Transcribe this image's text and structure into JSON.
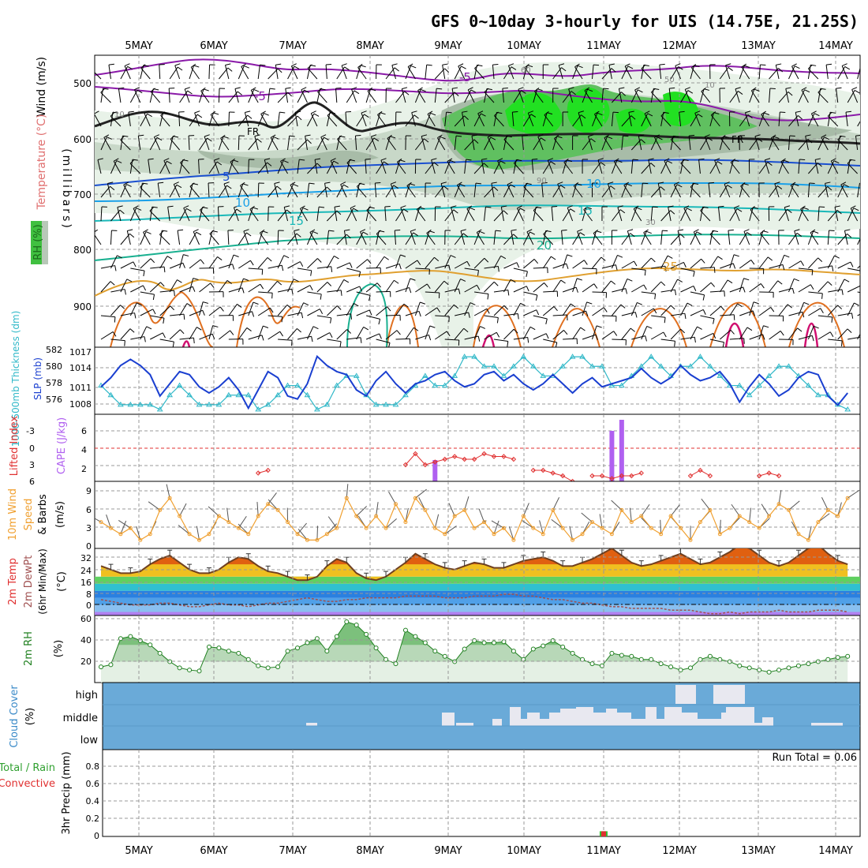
{
  "title": "GFS 0~10day 3-hourly for UIS (14.75E, 21.25S)",
  "dates": [
    "5MAY",
    "6MAY",
    "7MAY",
    "8MAY",
    "9MAY",
    "10MAY",
    "11MAY",
    "12MAY",
    "13MAY",
    "14MAY"
  ],
  "colors": {
    "temp_neg": "#8a1aa8",
    "temp_5": "#1a4fd0",
    "temp_10": "#1aa0e8",
    "temp_15": "#1ab8b8",
    "temp_20": "#19b090",
    "temp_25": "#e0a030",
    "temp_30": "#e07020",
    "temp_hot": "#d01070",
    "slp": "#1a3fd0",
    "thickness": "#30b8c8",
    "lifted": "#e03030",
    "cape": "#b060f0",
    "wind": "#f0a030",
    "rh_green": "#40c040",
    "cloud_bg": "#6aaad8",
    "cloud_fill": "#e8e8f0",
    "precip_total": "#30c030",
    "precip_conv": "#e03030"
  },
  "panels": {
    "upper": {
      "ylabel_wind": "Wind (m/s)",
      "ylabel_temp": "Temperature (°C)",
      "ylabel_rh": "RH (%)",
      "ylabel_units": "(millibars)",
      "ticks": [
        "500",
        "600",
        "700",
        "800",
        "900"
      ],
      "contour_labels": [
        "-5",
        "-5",
        "5",
        "10",
        "10",
        "15",
        "15",
        "20",
        "25",
        "FR",
        "FR",
        "10",
        "30",
        "50",
        "90",
        "60",
        "10"
      ]
    },
    "slp": {
      "left_label": "1000-500mb Thickness (dm)",
      "right_label": "SLP (mb)",
      "left_ticks": [
        "582",
        "580",
        "578",
        "576"
      ],
      "right_ticks": [
        "1017",
        "1014",
        "1011",
        "1008"
      ]
    },
    "cape": {
      "left_label": "Lifted Index",
      "right_label": "CAPE (J/kg)",
      "left_ticks": [
        "-3",
        "0",
        "3",
        "6"
      ],
      "right_ticks": [
        "6",
        "4",
        "2"
      ]
    },
    "wind": {
      "label1": "10m Wind",
      "label2": "Speed",
      "label3": "& Barbs",
      "units": "(m/s)",
      "ticks": [
        "9",
        "6",
        "3",
        "0"
      ]
    },
    "temp": {
      "label1": "2m Temp",
      "label2": "2m DewPt",
      "label3": "(6hr Min/Max)",
      "units": "(°C)",
      "ticks": [
        "32",
        "24",
        "16",
        "8",
        "0"
      ]
    },
    "rh": {
      "label": "2m RH",
      "units": "(%)",
      "ticks": [
        "60",
        "40",
        "20"
      ]
    },
    "cloud": {
      "label": "Cloud Cover",
      "units": "(%)",
      "levels": [
        "high",
        "middle",
        "low"
      ]
    },
    "precip": {
      "label1": "Total / Rain",
      "label2": "Convective",
      "ylabel": "3hr Precip (mm)",
      "ticks": [
        "0.8",
        "0.6",
        "0.4",
        "0.2",
        "0"
      ],
      "run_total": "Run Total = 0.06"
    }
  },
  "chart_data": {
    "type": "line",
    "title": "GFS 0~10day 3-hourly for UIS (14.75E, 21.25S)",
    "x_unit": "3-hourly steps from 4 May 12Z",
    "slp_mb": [
      1011.5,
      1013,
      1015,
      1016,
      1015,
      1013.5,
      1010,
      1012,
      1014,
      1013.5,
      1011.5,
      1010.5,
      1011.5,
      1013,
      1011,
      1008,
      1011,
      1014,
      1013,
      1010,
      1009.5,
      1012,
      1016.5,
      1015,
      1014,
      1013.5,
      1011,
      1010,
      1012.5,
      1014,
      1012,
      1010.5,
      1012,
      1012.5,
      1013.5,
      1014,
      1012.5,
      1011.5,
      1012,
      1013.5,
      1014,
      1012.5,
      1013.5,
      1012,
      1011,
      1012,
      1013.5,
      1012,
      1010.5,
      1012,
      1013,
      1011.5,
      1012,
      1012.5,
      1013,
      1014.5,
      1013,
      1012,
      1013,
      1015,
      1013.5,
      1012.5,
      1013,
      1014,
      1012,
      1009,
      1011.5,
      1013.5,
      1012,
      1010,
      1011,
      1013,
      1014,
      1013.5,
      1010,
      1008.5,
      1010.5
    ],
    "thickness_dm": [
      578,
      577,
      576,
      576,
      576,
      576,
      575.5,
      577,
      578,
      577,
      576,
      576,
      576,
      577,
      577,
      577,
      575.5,
      576,
      577,
      578,
      578,
      577,
      575.5,
      576,
      578,
      579,
      579,
      577,
      576,
      576,
      576,
      577,
      578,
      579,
      578,
      578,
      579,
      581,
      581,
      580,
      580,
      579,
      580,
      581,
      580,
      579,
      579,
      580,
      581,
      581,
      580,
      580,
      578,
      578,
      579,
      580,
      581,
      580,
      579,
      580,
      580,
      581,
      580,
      579,
      578,
      578,
      577,
      578,
      579,
      580,
      580,
      579,
      578,
      577,
      577,
      576,
      575.5
    ],
    "wind_speed_ms": [
      4,
      3,
      2,
      3,
      1,
      2,
      6,
      8,
      5,
      2,
      1,
      2,
      5,
      4,
      3,
      2,
      5,
      7,
      6,
      4,
      2,
      1,
      1,
      2,
      3,
      8,
      5,
      3,
      5,
      3,
      7,
      4,
      8,
      6,
      3,
      2,
      5,
      6,
      3,
      4,
      2,
      3,
      1,
      5,
      3,
      2,
      6,
      3,
      1,
      2,
      4,
      3,
      2,
      6,
      4,
      5,
      3,
      2,
      5,
      3,
      1,
      4,
      6,
      2,
      3,
      5,
      4,
      3,
      5,
      7,
      6,
      2,
      1,
      4,
      6,
      5,
      8
    ],
    "temp_2m_c": [
      26,
      24,
      22,
      22,
      23,
      27,
      30,
      32,
      28,
      24,
      22,
      22,
      24,
      28,
      31,
      30,
      26,
      23,
      22,
      20,
      18,
      18,
      20,
      26,
      30,
      28,
      22,
      19,
      18,
      20,
      24,
      28,
      33,
      30,
      27,
      25,
      24,
      26,
      28,
      27,
      25,
      25,
      27,
      29,
      30,
      31,
      29,
      26,
      26,
      28,
      30,
      33,
      36,
      32,
      28,
      26,
      27,
      29,
      31,
      33,
      30,
      27,
      28,
      31,
      34,
      38,
      36,
      32,
      28,
      26,
      28,
      32,
      36,
      38,
      33,
      29,
      27
    ],
    "dewpoint_2m_c": [
      7,
      6,
      5,
      4,
      4,
      4,
      5,
      5,
      4,
      3,
      3,
      4,
      5,
      4,
      4,
      3,
      4,
      5,
      5,
      6,
      7,
      8,
      7,
      6,
      6,
      7,
      7,
      8,
      8,
      8,
      8,
      9,
      9,
      9,
      9,
      8,
      8,
      8,
      9,
      9,
      9,
      10,
      10,
      9,
      9,
      8,
      7,
      7,
      6,
      5,
      5,
      4,
      3,
      3,
      2,
      2,
      2,
      2,
      1,
      1,
      1,
      0,
      -1,
      -1,
      0,
      -1,
      0,
      0,
      0,
      1,
      0,
      0,
      0,
      1,
      1,
      1,
      0
    ],
    "rh_2m_pct": [
      15,
      17,
      42,
      44,
      40,
      36,
      28,
      20,
      14,
      12,
      11,
      34,
      33,
      30,
      28,
      22,
      16,
      14,
      15,
      30,
      33,
      38,
      42,
      30,
      44,
      58,
      55,
      46,
      33,
      22,
      18,
      50,
      44,
      38,
      30,
      25,
      20,
      32,
      40,
      38,
      38,
      39,
      30,
      22,
      32,
      35,
      40,
      34,
      28,
      22,
      18,
      16,
      28,
      26,
      25,
      22,
      22,
      18,
      15,
      12,
      14,
      22,
      25,
      22,
      20,
      16,
      14,
      12,
      10,
      12,
      14,
      16,
      18,
      20,
      22,
      24,
      25
    ],
    "lifted_index": [
      null,
      null,
      null,
      null,
      null,
      null,
      null,
      null,
      null,
      null,
      null,
      null,
      null,
      null,
      null,
      null,
      4.5,
      4,
      null,
      null,
      null,
      null,
      null,
      null,
      null,
      null,
      null,
      null,
      null,
      null,
      null,
      3,
      1,
      3,
      2.5,
      2,
      1.5,
      2,
      2,
      1,
      1.5,
      1.5,
      2,
      null,
      4,
      4,
      4.5,
      5,
      6,
      null,
      5,
      5,
      5.5,
      5,
      5,
      4.5,
      null,
      null,
      null,
      null,
      5,
      4,
      5,
      null,
      null,
      null,
      null,
      5,
      4.5,
      5,
      null,
      null,
      null,
      null,
      null,
      null,
      null
    ],
    "cape_jkg": [
      0,
      0,
      0,
      0,
      0,
      0,
      0,
      0,
      0,
      0,
      0,
      0,
      0,
      0,
      0,
      0,
      0,
      0,
      0,
      0,
      0,
      0,
      0,
      0,
      0,
      0,
      0,
      0,
      0,
      0,
      0,
      0,
      0,
      0,
      2.7,
      0,
      0,
      0,
      0,
      0,
      0,
      0,
      0,
      0,
      0,
      0,
      0,
      0,
      0,
      0,
      0,
      0,
      6.4,
      7.8,
      0,
      0,
      0,
      0,
      0,
      0,
      0,
      0,
      0,
      0,
      0,
      0,
      0,
      0,
      0,
      0,
      0,
      0,
      0,
      0,
      0,
      0,
      0
    ],
    "precip_total_mm": [
      0,
      0,
      0,
      0,
      0,
      0,
      0,
      0,
      0,
      0,
      0,
      0,
      0,
      0,
      0,
      0,
      0,
      0,
      0,
      0,
      0,
      0,
      0,
      0,
      0,
      0,
      0,
      0,
      0,
      0,
      0,
      0,
      0,
      0,
      0,
      0,
      0,
      0,
      0,
      0,
      0,
      0,
      0,
      0,
      0,
      0,
      0,
      0,
      0,
      0,
      0,
      0.06,
      0,
      0,
      0,
      0,
      0,
      0,
      0,
      0,
      0,
      0,
      0,
      0,
      0,
      0,
      0,
      0,
      0,
      0,
      0,
      0,
      0,
      0,
      0,
      0,
      0
    ],
    "run_total_mm": 0.06,
    "slp_ylim": [
      1007,
      1018
    ],
    "thickness_ylim": [
      575,
      582
    ],
    "wind_ylim": [
      0,
      10
    ],
    "temp_ylim": [
      -2,
      36
    ],
    "rh_ylim": [
      0,
      64
    ],
    "precip_ylim": [
      0,
      1
    ]
  }
}
